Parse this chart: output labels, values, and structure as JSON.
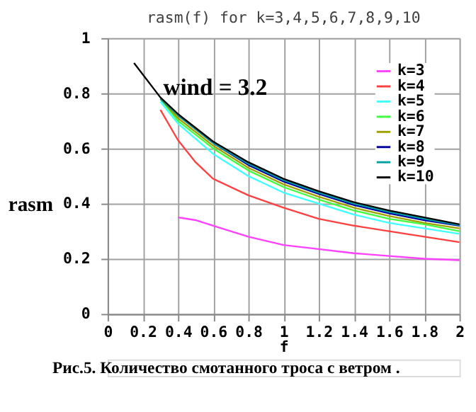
{
  "chart_data": {
    "type": "line",
    "title": "rasm(f) for k=3,4,5,6,7,8,9,10",
    "xlabel": "f",
    "ylabel": "rasm",
    "annotations": [
      "wind = 3.2",
      "Рис.5.  Количество смотанного троса с ветром ."
    ],
    "xlim": [
      0,
      2
    ],
    "xticks": [
      0,
      0.2,
      0.4,
      0.6,
      0.8,
      1,
      1.2,
      1.4,
      1.6,
      1.8,
      2
    ],
    "ylim": [
      0,
      1
    ],
    "yticks": [
      0,
      0.2,
      0.4,
      0.6,
      0.8,
      1
    ],
    "grid": true,
    "legend": "top right",
    "marker": "none",
    "line_style": "solid",
    "series": [
      {
        "name": "k=3",
        "color": "#ff40ff",
        "x": [
          0.4,
          0.5,
          0.6,
          0.8,
          1,
          1.2,
          1.4,
          1.6,
          1.8,
          2
        ],
        "values": [
          0.35,
          0.34,
          0.32,
          0.28,
          0.25,
          0.235,
          0.22,
          0.21,
          0.2,
          0.195
        ]
      },
      {
        "name": "k=4",
        "color": "#ff4040",
        "x": [
          0.3,
          0.4,
          0.5,
          0.6,
          0.8,
          1,
          1.2,
          1.4,
          1.6,
          1.8,
          2
        ],
        "values": [
          0.74,
          0.63,
          0.55,
          0.49,
          0.43,
          0.385,
          0.345,
          0.32,
          0.3,
          0.28,
          0.26
        ]
      },
      {
        "name": "k=5",
        "color": "#40ffff",
        "x": [
          0.3,
          0.4,
          0.6,
          0.8,
          1,
          1.2,
          1.4,
          1.6,
          1.8,
          2
        ],
        "values": [
          0.77,
          0.69,
          0.58,
          0.5,
          0.44,
          0.4,
          0.36,
          0.33,
          0.31,
          0.29
        ]
      },
      {
        "name": "k=6",
        "color": "#40ff40",
        "x": [
          0.3,
          0.4,
          0.6,
          0.8,
          1,
          1.2,
          1.4,
          1.6,
          1.8,
          2
        ],
        "values": [
          0.78,
          0.7,
          0.6,
          0.52,
          0.46,
          0.415,
          0.375,
          0.345,
          0.325,
          0.3
        ]
      },
      {
        "name": "k=7",
        "color": "#a0a000",
        "x": [
          0.3,
          0.4,
          0.6,
          0.8,
          1,
          1.2,
          1.4,
          1.6,
          1.8,
          2
        ],
        "values": [
          0.78,
          0.71,
          0.61,
          0.53,
          0.47,
          0.425,
          0.385,
          0.355,
          0.33,
          0.31
        ]
      },
      {
        "name": "k=8",
        "color": "#0000a0",
        "x": [
          0.4,
          0.6,
          0.8,
          1,
          1.2,
          1.4,
          1.6,
          1.8,
          2
        ],
        "values": [
          0.72,
          0.62,
          0.54,
          0.48,
          0.435,
          0.395,
          0.365,
          0.34,
          0.32
        ]
      },
      {
        "name": "k=9",
        "color": "#00a0a0",
        "x": [
          0.3,
          0.4,
          0.6,
          0.8,
          1,
          1.2,
          1.4,
          1.6,
          1.8,
          2
        ],
        "values": [
          0.78,
          0.72,
          0.62,
          0.545,
          0.485,
          0.44,
          0.4,
          0.37,
          0.345,
          0.322
        ]
      },
      {
        "name": "k=10",
        "color": "#000000",
        "x": [
          0.15,
          0.3,
          0.4,
          0.6,
          0.8,
          1,
          1.2,
          1.4,
          1.6,
          1.8,
          2
        ],
        "values": [
          0.91,
          0.785,
          0.725,
          0.625,
          0.55,
          0.49,
          0.445,
          0.405,
          0.375,
          0.35,
          0.325
        ]
      }
    ]
  }
}
